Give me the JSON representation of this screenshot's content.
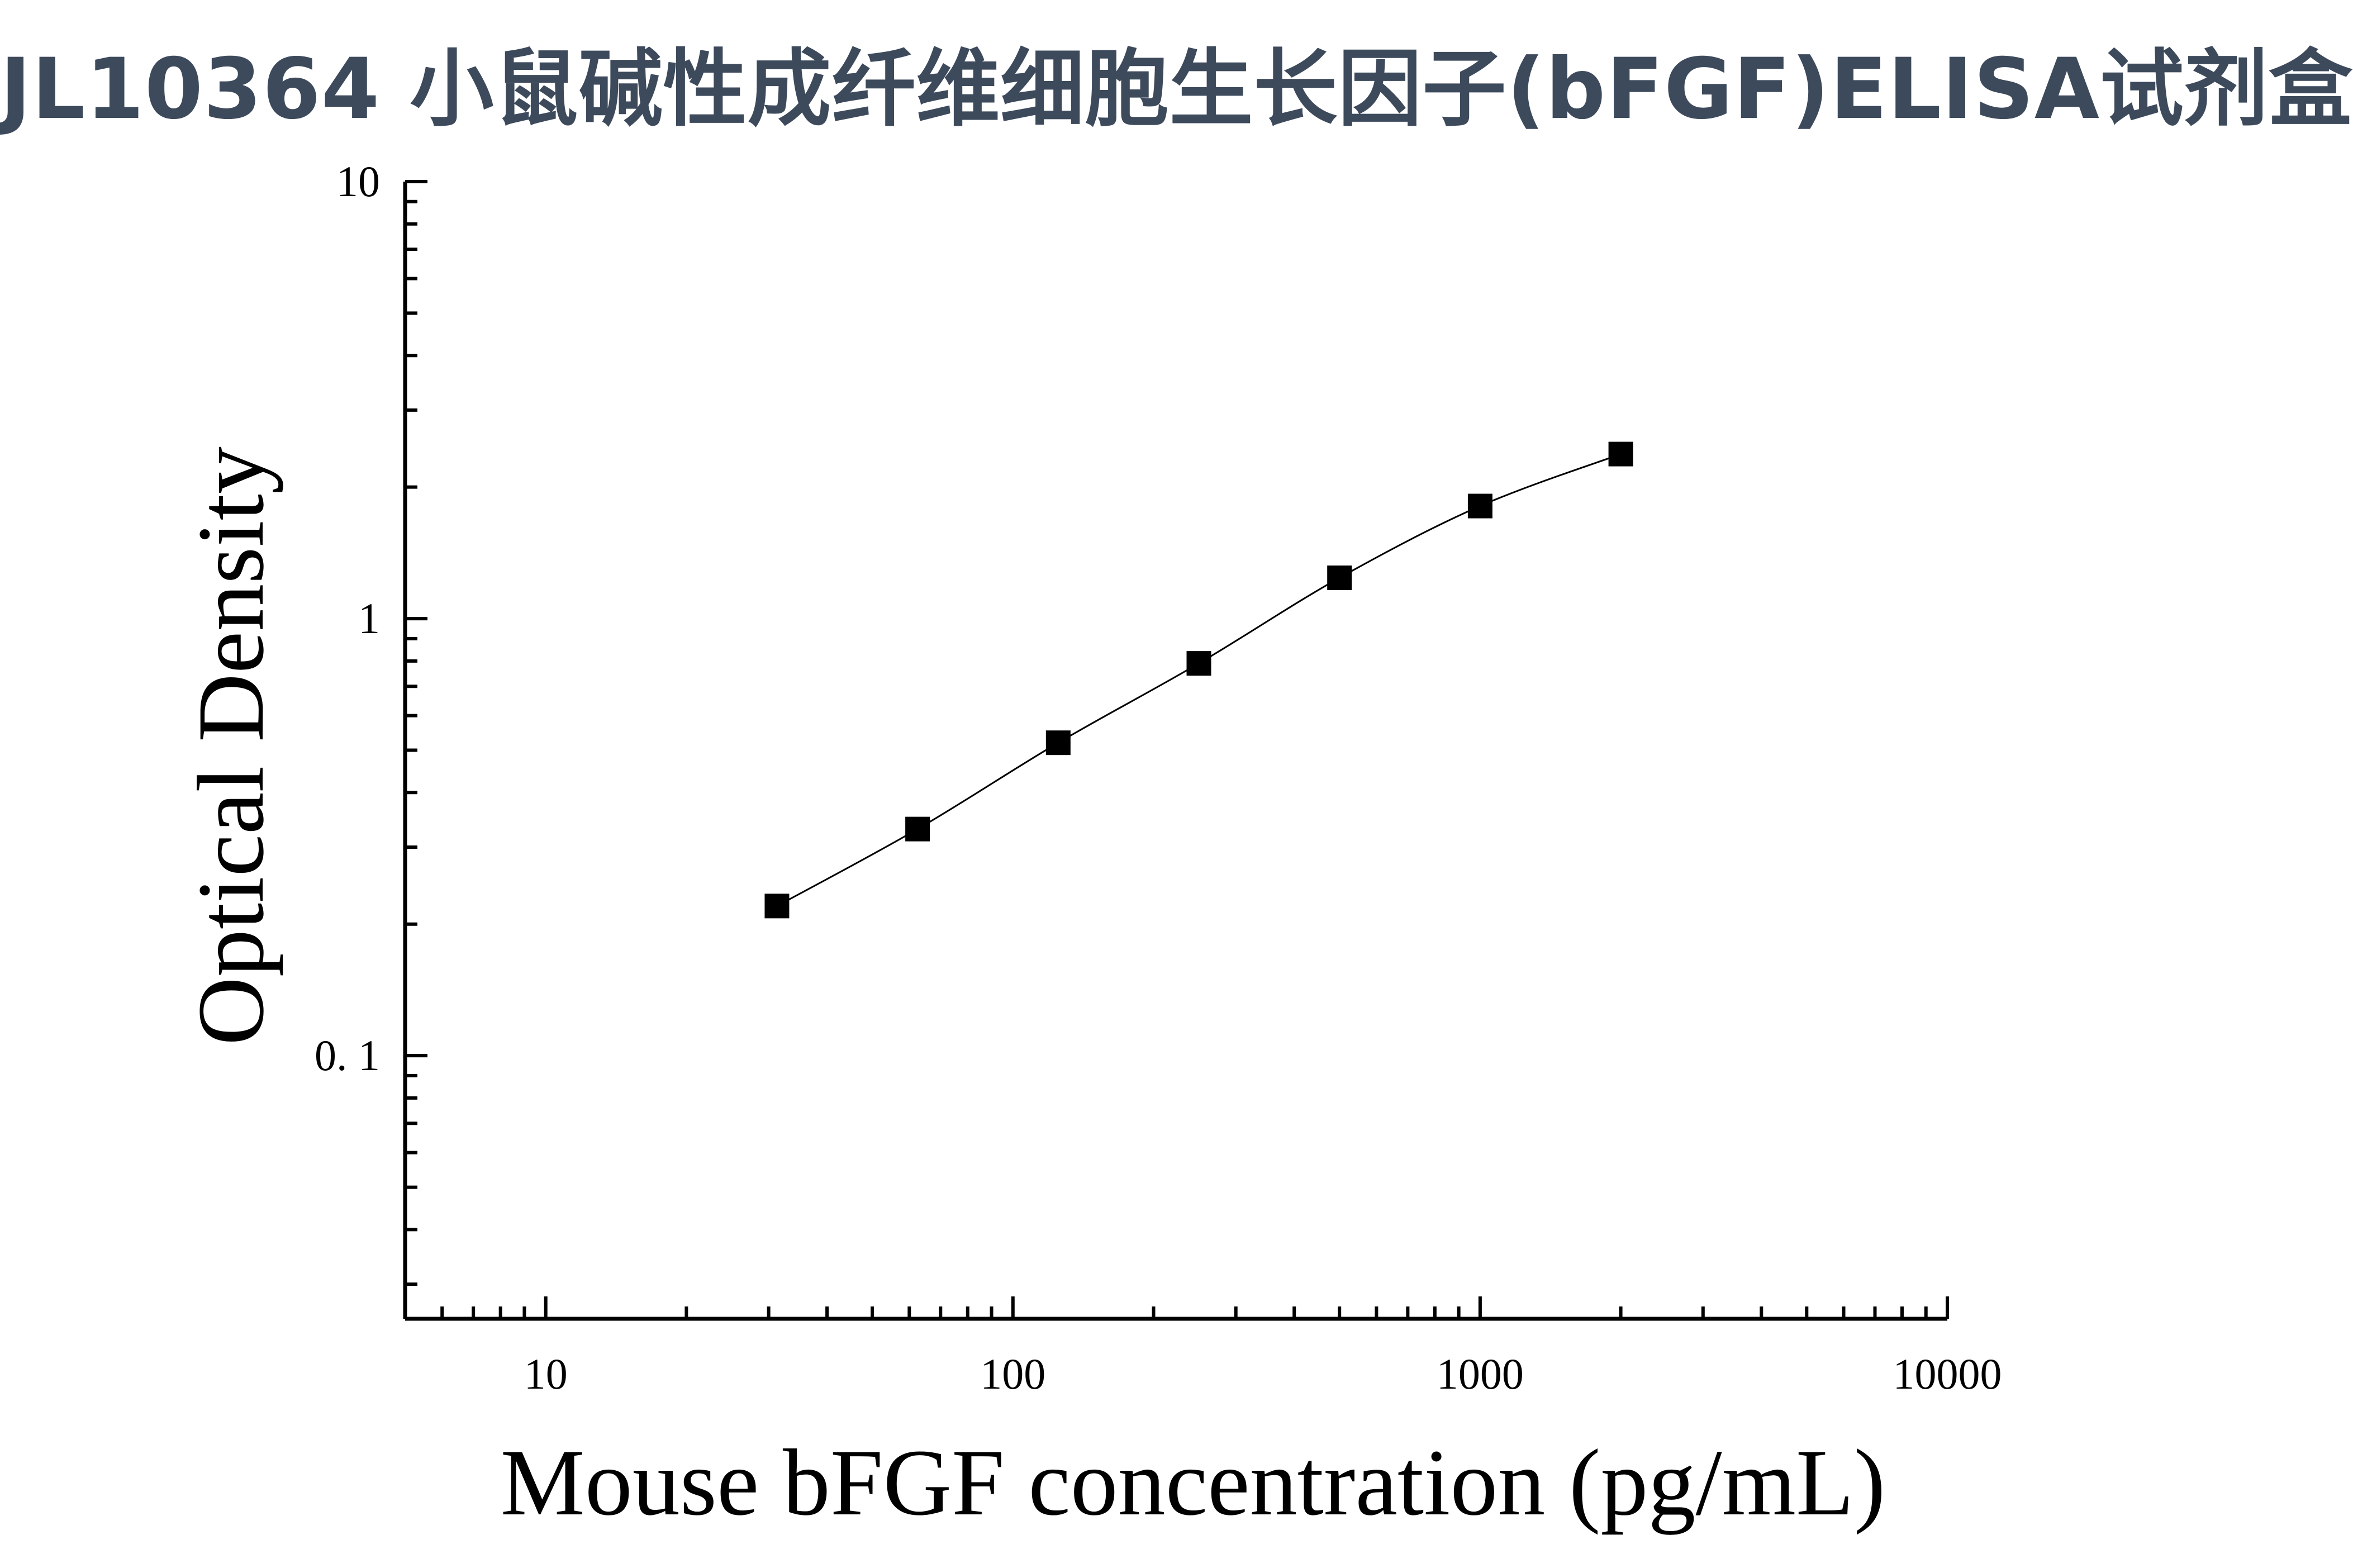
{
  "title": "JL10364 小鼠碱性成纤维细胞生长因子(bFGF)ELISA试剂盒",
  "chart_data": {
    "type": "scatter",
    "title": "JL10364 小鼠碱性成纤维细胞生长因子(bFGF)ELISA试剂盒",
    "xlabel": "Mouse bFGF concentration (pg/mL)",
    "ylabel": "Optical Density",
    "x_scale": "log",
    "y_scale": "log",
    "xlim": [
      5,
      10000
    ],
    "ylim": [
      0.025,
      10
    ],
    "x_ticks": [
      10,
      100,
      1000,
      10000
    ],
    "x_tick_labels": [
      "10",
      "100",
      "1000",
      "10000"
    ],
    "y_ticks": [
      0.1,
      1,
      10
    ],
    "y_tick_labels": [
      "0. 1",
      "1",
      "10"
    ],
    "grid": false,
    "marker": "square",
    "color": "#000000",
    "fit_curve": true,
    "series": [
      {
        "x": [
          31.25,
          62.5,
          125,
          250,
          500,
          1000,
          2000
        ],
        "y": [
          0.22,
          0.33,
          0.52,
          0.79,
          1.24,
          1.81,
          2.38
        ]
      }
    ]
  }
}
